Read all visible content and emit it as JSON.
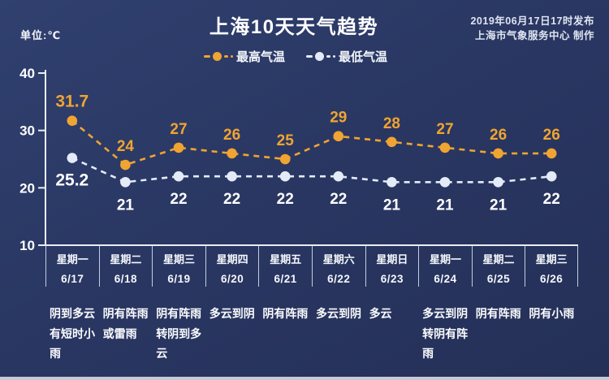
{
  "header": {
    "title": "上海10天天气趋势",
    "publish_time": "2019年06月17日17时发布",
    "publisher": "上海市气象服务中心 制作",
    "unit_label": "单位:℃"
  },
  "colors": {
    "background": "#2a3763",
    "high_series": "#f0a431",
    "low_series": "#e3ebf8",
    "text": "#ffffff",
    "axis": "#e9edf6",
    "separator": "#e2e8f4",
    "frame_strip": "#c5cad5"
  },
  "chart_data": {
    "type": "line",
    "title": "上海10天天气趋势",
    "unit": "℃",
    "ylim": [
      10,
      40
    ],
    "y_ticks": [
      40,
      30,
      20,
      10
    ],
    "grid": false,
    "legend_position": "top-center",
    "line_style": "dashed-with-dots",
    "categories": [
      {
        "week": "星期一",
        "date": "6/17",
        "weather": "阴到多云有短时小雨"
      },
      {
        "week": "星期二",
        "date": "6/18",
        "weather": "阴有阵雨或雷雨"
      },
      {
        "week": "星期三",
        "date": "6/19",
        "weather": "阴有阵雨转阴到多云"
      },
      {
        "week": "星期四",
        "date": "6/20",
        "weather": "多云到阴"
      },
      {
        "week": "星期五",
        "date": "6/21",
        "weather": "阴有阵雨"
      },
      {
        "week": "星期六",
        "date": "6/22",
        "weather": "多云到阴"
      },
      {
        "week": "星期日",
        "date": "6/23",
        "weather": "多云"
      },
      {
        "week": "星期一",
        "date": "6/24",
        "weather": "多云到阴转阴有阵雨"
      },
      {
        "week": "星期二",
        "date": "6/25",
        "weather": "阴有阵雨"
      },
      {
        "week": "星期三",
        "date": "6/26",
        "weather": "阴有小雨"
      }
    ],
    "series": [
      {
        "name": "最高气温",
        "color": "#f0a431",
        "values": [
          31.7,
          24,
          27,
          26,
          25,
          29,
          28,
          27,
          26,
          26
        ]
      },
      {
        "name": "最低气温",
        "color": "#e3ebf8",
        "values": [
          25.2,
          21,
          22,
          22,
          22,
          22,
          21,
          21,
          21,
          22
        ]
      }
    ]
  }
}
